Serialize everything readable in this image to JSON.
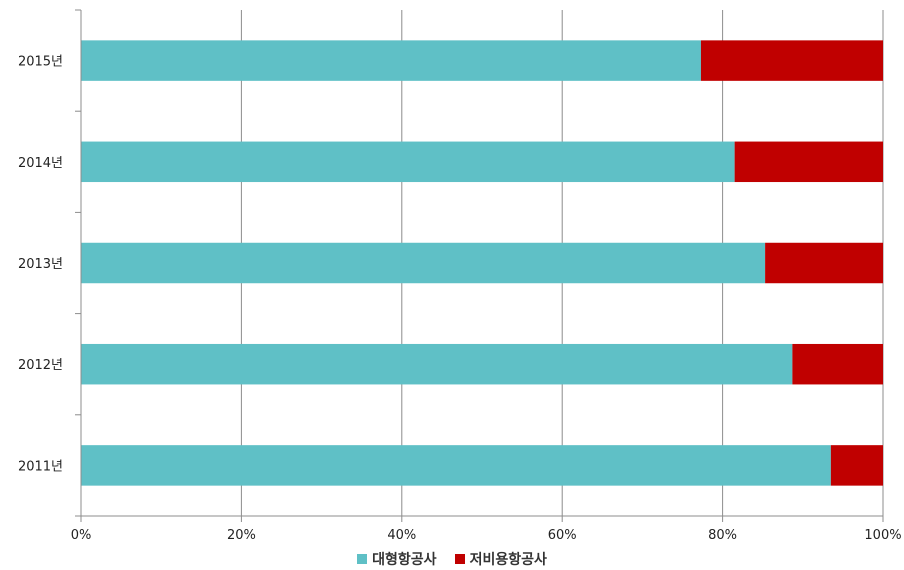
{
  "chart_data": {
    "type": "bar",
    "orientation": "horizontal",
    "stacked": "percent",
    "categories": [
      "2015년",
      "2014년",
      "2013년",
      "2012년",
      "2011년"
    ],
    "series": [
      {
        "name": "대형항공사",
        "color": "#5fc0c6",
        "values": [
          77.3,
          81.5,
          85.3,
          88.7,
          93.5
        ]
      },
      {
        "name": "저비용항공사",
        "color": "#c00000",
        "values": [
          22.7,
          18.5,
          14.7,
          11.3,
          6.5
        ]
      }
    ],
    "x_ticks": [
      "0%",
      "20%",
      "40%",
      "60%",
      "80%",
      "100%"
    ],
    "xlim": [
      0,
      100
    ],
    "grid": true,
    "legend_position": "bottom"
  }
}
